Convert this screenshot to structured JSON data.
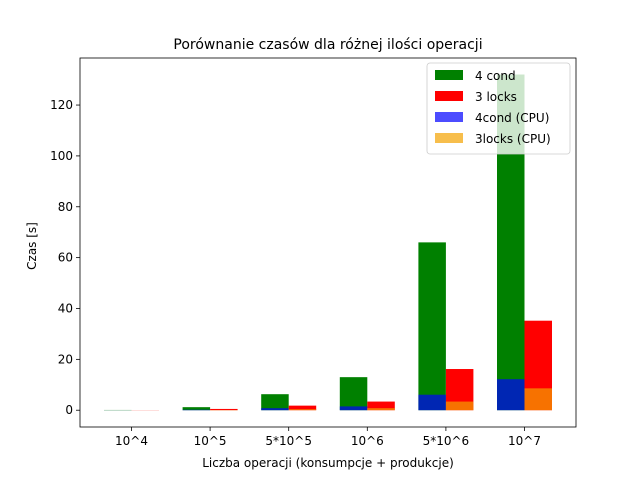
{
  "chart_data": {
    "type": "bar",
    "title": "Porównanie czasów dla różnej ilości operacji",
    "xlabel": "Liczba operacji (konsumpcje + produkcje)",
    "ylabel": "Czas [s]",
    "ylim": [
      -6.6,
      138.5
    ],
    "yticks": [
      0,
      20,
      40,
      60,
      80,
      100,
      120
    ],
    "categories": [
      "10^4",
      "10^5",
      "5*10^5",
      "10^6",
      "5*10^6",
      "10^7"
    ],
    "legend_position": "top-right",
    "grid": false,
    "series": [
      {
        "name": "4 cond",
        "color": "#008000",
        "opacity": 1.0,
        "group": 0,
        "values": [
          0.1,
          1.2,
          6.3,
          13.0,
          66.0,
          132.0
        ]
      },
      {
        "name": "3 locks",
        "color": "#ff0000",
        "opacity": 1.0,
        "group": 1,
        "values": [
          0.05,
          0.5,
          1.8,
          3.4,
          16.2,
          35.2
        ]
      },
      {
        "name": "4cond (CPU)",
        "color": "#0000ff",
        "opacity": 0.7,
        "group": 0,
        "values": [
          0.02,
          0.2,
          0.8,
          1.5,
          6.1,
          12.2
        ]
      },
      {
        "name": "3locks (CPU)",
        "color": "#f4a300",
        "opacity": 0.7,
        "group": 1,
        "values": [
          0.01,
          0.1,
          0.4,
          0.8,
          3.4,
          8.6
        ]
      }
    ]
  }
}
